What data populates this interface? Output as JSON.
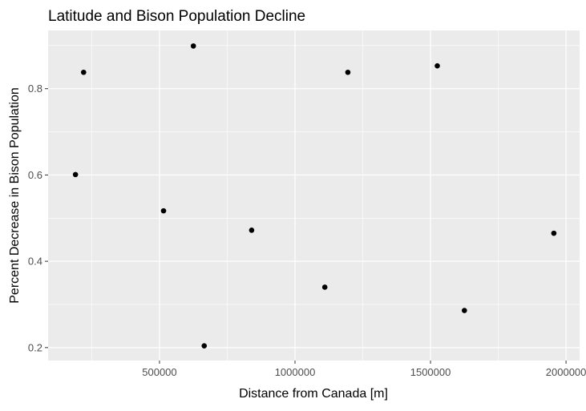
{
  "chart_data": {
    "type": "scatter",
    "title": "Latitude and Bison Population Decline",
    "xlabel": "Distance from Canada [m]",
    "ylabel": "Percent Decrease in Bison Population",
    "xlim": [
      89000,
      2050000
    ],
    "ylim": [
      0.17,
      0.935
    ],
    "x_ticks": [
      500000,
      1000000,
      1500000,
      2000000
    ],
    "x_tick_labels": [
      "500000",
      "1000000",
      "1500000",
      "2000000"
    ],
    "y_ticks": [
      0.2,
      0.4,
      0.6,
      0.8
    ],
    "y_tick_labels": [
      "0.2",
      "0.4",
      "0.6",
      "0.8"
    ],
    "grid": true,
    "panel_color": "#ebebeb",
    "grid_color": "#ffffff",
    "point_color": "#000000",
    "points": [
      {
        "x": 190000,
        "y": 0.601
      },
      {
        "x": 220000,
        "y": 0.838
      },
      {
        "x": 515000,
        "y": 0.517
      },
      {
        "x": 625000,
        "y": 0.899
      },
      {
        "x": 665000,
        "y": 0.204
      },
      {
        "x": 840000,
        "y": 0.472
      },
      {
        "x": 1110000,
        "y": 0.34
      },
      {
        "x": 1195000,
        "y": 0.838
      },
      {
        "x": 1525000,
        "y": 0.853
      },
      {
        "x": 1625000,
        "y": 0.286
      },
      {
        "x": 1955000,
        "y": 0.465
      }
    ]
  }
}
